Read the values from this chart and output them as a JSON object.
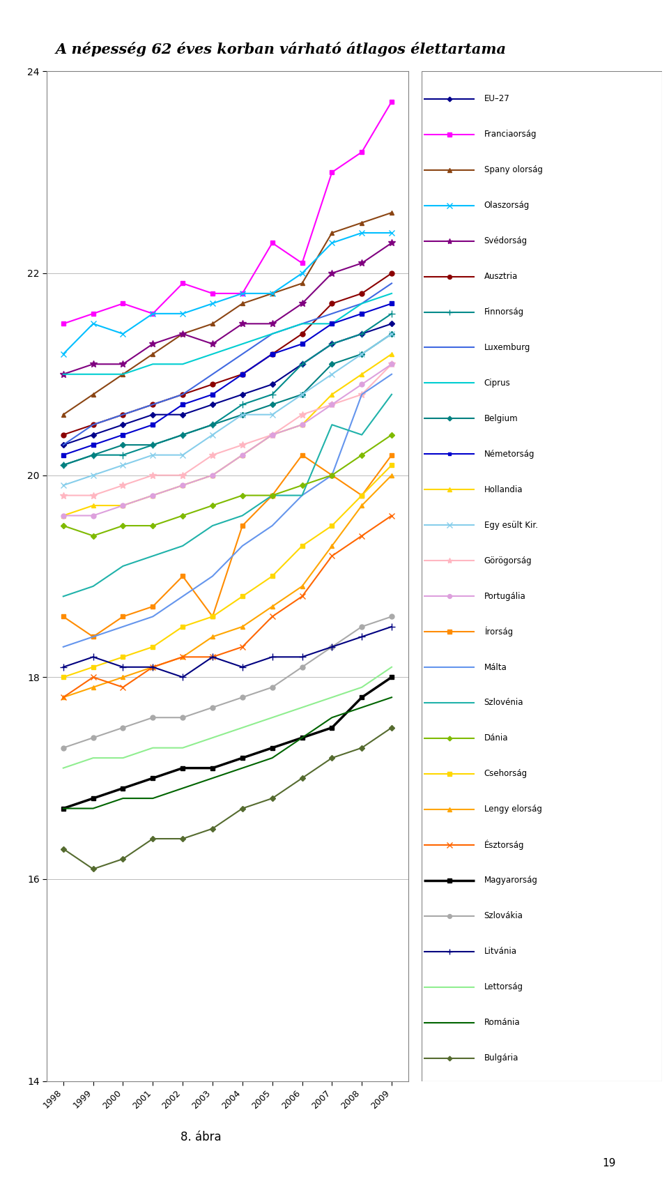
{
  "title": "A népesség 62 éves korban várható átlagos élettartama",
  "subtitle": "8. ábra",
  "years": [
    1998,
    1999,
    2000,
    2001,
    2002,
    2003,
    2004,
    2005,
    2006,
    2007,
    2008,
    2009
  ],
  "series": [
    {
      "name": "EU–27",
      "color": "#00008B",
      "marker": "D",
      "linewidth": 1.5,
      "markersize": 4,
      "values": [
        20.3,
        20.4,
        20.5,
        20.6,
        20.6,
        20.7,
        20.8,
        20.9,
        21.1,
        21.3,
        21.4,
        21.5
      ]
    },
    {
      "name": "Franciaorság",
      "color": "#FF00FF",
      "marker": "s",
      "linewidth": 1.5,
      "markersize": 5,
      "values": [
        21.5,
        21.6,
        21.7,
        21.6,
        21.9,
        21.8,
        21.8,
        22.3,
        22.1,
        23.0,
        23.2,
        23.7
      ]
    },
    {
      "name": "Spany olorság",
      "color": "#8B4513",
      "marker": "^",
      "linewidth": 1.5,
      "markersize": 5,
      "values": [
        20.6,
        20.8,
        21.0,
        21.2,
        21.4,
        21.5,
        21.7,
        21.8,
        21.9,
        22.4,
        22.5,
        22.6
      ]
    },
    {
      "name": "Olaszorság",
      "color": "#00BFFF",
      "marker": "x",
      "linewidth": 1.5,
      "markersize": 6,
      "values": [
        21.2,
        21.5,
        21.4,
        21.6,
        21.6,
        21.7,
        21.8,
        21.8,
        22.0,
        22.3,
        22.4,
        22.4
      ]
    },
    {
      "name": "Svédorság",
      "color": "#800080",
      "marker": "*",
      "linewidth": 1.5,
      "markersize": 7,
      "values": [
        21.0,
        21.1,
        21.1,
        21.3,
        21.4,
        21.3,
        21.5,
        21.5,
        21.7,
        22.0,
        22.1,
        22.3
      ]
    },
    {
      "name": "Ausztria",
      "color": "#8B0000",
      "marker": "o",
      "linewidth": 1.5,
      "markersize": 5,
      "values": [
        20.4,
        20.5,
        20.6,
        20.7,
        20.8,
        20.9,
        21.0,
        21.2,
        21.4,
        21.7,
        21.8,
        22.0
      ]
    },
    {
      "name": "Finnorság",
      "color": "#008B8B",
      "marker": "+",
      "linewidth": 1.5,
      "markersize": 7,
      "values": [
        20.1,
        20.2,
        20.2,
        20.3,
        20.4,
        20.5,
        20.7,
        20.8,
        21.1,
        21.3,
        21.4,
        21.6
      ]
    },
    {
      "name": "Luxemburg",
      "color": "#4169E1",
      "marker": "None",
      "linewidth": 1.5,
      "markersize": 5,
      "values": [
        20.3,
        20.5,
        20.6,
        20.7,
        20.8,
        21.0,
        21.2,
        21.4,
        21.5,
        21.6,
        21.7,
        21.9
      ]
    },
    {
      "name": "Ciprus",
      "color": "#00CED1",
      "marker": "None",
      "linewidth": 1.5,
      "markersize": 5,
      "values": [
        21.0,
        21.0,
        21.0,
        21.1,
        21.1,
        21.2,
        21.3,
        21.4,
        21.5,
        21.5,
        21.7,
        21.8
      ]
    },
    {
      "name": "Belgium",
      "color": "#008080",
      "marker": "D",
      "linewidth": 1.5,
      "markersize": 4,
      "values": [
        20.1,
        20.2,
        20.3,
        20.3,
        20.4,
        20.5,
        20.6,
        20.7,
        20.8,
        21.1,
        21.2,
        21.4
      ]
    },
    {
      "name": "Németorság",
      "color": "#0000CD",
      "marker": "s",
      "linewidth": 1.5,
      "markersize": 4,
      "values": [
        20.2,
        20.3,
        20.4,
        20.5,
        20.7,
        20.8,
        21.0,
        21.2,
        21.3,
        21.5,
        21.6,
        21.7
      ]
    },
    {
      "name": "Hollandia",
      "color": "#FFD700",
      "marker": "^",
      "linewidth": 1.5,
      "markersize": 5,
      "values": [
        19.6,
        19.7,
        19.7,
        19.8,
        19.9,
        20.0,
        20.2,
        20.4,
        20.5,
        20.8,
        21.0,
        21.2
      ]
    },
    {
      "name": "Egy esült Kir.",
      "color": "#87CEEB",
      "marker": "x",
      "linewidth": 1.5,
      "markersize": 6,
      "values": [
        19.9,
        20.0,
        20.1,
        20.2,
        20.2,
        20.4,
        20.6,
        20.6,
        20.8,
        21.0,
        21.2,
        21.4
      ]
    },
    {
      "name": "Görögorság",
      "color": "#FFB6C1",
      "marker": "*",
      "linewidth": 1.5,
      "markersize": 7,
      "values": [
        19.8,
        19.8,
        19.9,
        20.0,
        20.0,
        20.2,
        20.3,
        20.4,
        20.6,
        20.7,
        20.8,
        21.1
      ]
    },
    {
      "name": "Portugália",
      "color": "#DDA0DD",
      "marker": "o",
      "linewidth": 1.5,
      "markersize": 5,
      "values": [
        19.6,
        19.6,
        19.7,
        19.8,
        19.9,
        20.0,
        20.2,
        20.4,
        20.5,
        20.7,
        20.9,
        21.1
      ]
    },
    {
      "name": "Írorság",
      "color": "#FF8C00",
      "marker": "s",
      "linewidth": 1.5,
      "markersize": 5,
      "values": [
        18.6,
        18.4,
        18.6,
        18.7,
        19.0,
        18.6,
        19.5,
        19.8,
        20.2,
        20.0,
        19.8,
        20.2
      ]
    },
    {
      "name": "Málta",
      "color": "#6495ED",
      "marker": "None",
      "linewidth": 1.5,
      "markersize": 5,
      "values": [
        18.3,
        18.4,
        18.5,
        18.6,
        18.8,
        19.0,
        19.3,
        19.5,
        19.8,
        20.0,
        20.8,
        21.0
      ]
    },
    {
      "name": "Szlovénia",
      "color": "#20B2AA",
      "marker": "None",
      "linewidth": 1.5,
      "markersize": 5,
      "values": [
        18.8,
        18.9,
        19.1,
        19.2,
        19.3,
        19.5,
        19.6,
        19.8,
        19.8,
        20.5,
        20.4,
        20.8
      ]
    },
    {
      "name": "Dánia",
      "color": "#7FBA00",
      "marker": "D",
      "linewidth": 1.5,
      "markersize": 4,
      "values": [
        19.5,
        19.4,
        19.5,
        19.5,
        19.6,
        19.7,
        19.8,
        19.8,
        19.9,
        20.0,
        20.2,
        20.4
      ]
    },
    {
      "name": "Csehorság",
      "color": "#FFD700",
      "marker": "s",
      "linewidth": 1.5,
      "markersize": 5,
      "values": [
        18.0,
        18.1,
        18.2,
        18.3,
        18.5,
        18.6,
        18.8,
        19.0,
        19.3,
        19.5,
        19.8,
        20.1
      ]
    },
    {
      "name": "Lengy elorság",
      "color": "#FFA500",
      "marker": "^",
      "linewidth": 1.5,
      "markersize": 5,
      "values": [
        17.8,
        17.9,
        18.0,
        18.1,
        18.2,
        18.4,
        18.5,
        18.7,
        18.9,
        19.3,
        19.7,
        20.0
      ]
    },
    {
      "name": "Észtorság",
      "color": "#FF6600",
      "marker": "x",
      "linewidth": 1.5,
      "markersize": 6,
      "values": [
        17.8,
        18.0,
        17.9,
        18.1,
        18.2,
        18.2,
        18.3,
        18.6,
        18.8,
        19.2,
        19.4,
        19.6
      ]
    },
    {
      "name": "Magyarorság",
      "color": "#000000",
      "marker": "s",
      "linewidth": 2.5,
      "markersize": 5,
      "values": [
        16.7,
        16.8,
        16.9,
        17.0,
        17.1,
        17.1,
        17.2,
        17.3,
        17.4,
        17.5,
        17.8,
        18.0
      ]
    },
    {
      "name": "Szlovákia",
      "color": "#A9A9A9",
      "marker": "o",
      "linewidth": 1.5,
      "markersize": 5,
      "values": [
        17.3,
        17.4,
        17.5,
        17.6,
        17.6,
        17.7,
        17.8,
        17.9,
        18.1,
        18.3,
        18.5,
        18.6
      ]
    },
    {
      "name": "Litvánia",
      "color": "#000080",
      "marker": "+",
      "linewidth": 1.5,
      "markersize": 7,
      "values": [
        18.1,
        18.2,
        18.1,
        18.1,
        18.0,
        18.2,
        18.1,
        18.2,
        18.2,
        18.3,
        18.4,
        18.5
      ]
    },
    {
      "name": "Lettorság",
      "color": "#90EE90",
      "marker": "None",
      "linewidth": 1.5,
      "markersize": 5,
      "values": [
        17.1,
        17.2,
        17.2,
        17.3,
        17.3,
        17.4,
        17.5,
        17.6,
        17.7,
        17.8,
        17.9,
        18.1
      ]
    },
    {
      "name": "Románia",
      "color": "#006400",
      "marker": "None",
      "linewidth": 1.5,
      "markersize": 5,
      "values": [
        16.7,
        16.7,
        16.8,
        16.8,
        16.9,
        17.0,
        17.1,
        17.2,
        17.4,
        17.6,
        17.7,
        17.8
      ]
    },
    {
      "name": "Bulgária",
      "color": "#556B2F",
      "marker": "D",
      "linewidth": 1.5,
      "markersize": 4,
      "values": [
        16.3,
        16.1,
        16.2,
        16.4,
        16.4,
        16.5,
        16.7,
        16.8,
        17.0,
        17.2,
        17.3,
        17.5
      ]
    }
  ],
  "ylim": [
    14,
    24
  ],
  "yticks": [
    14,
    16,
    18,
    20,
    22,
    24
  ],
  "background_color": "#ffffff",
  "page_number": "19"
}
